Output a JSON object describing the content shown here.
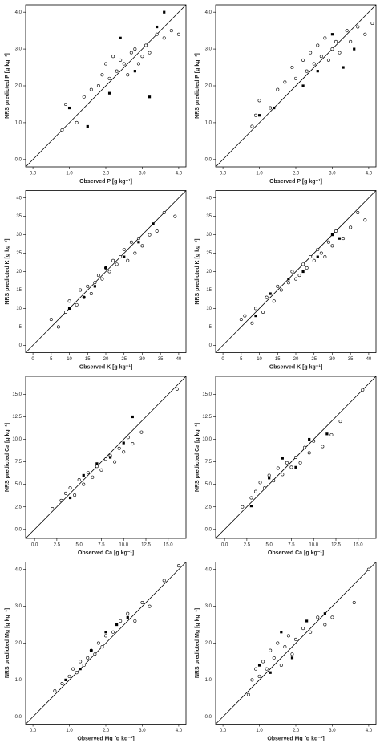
{
  "chart_data": [
    {
      "type": "scatter",
      "xlabel": "Observed P [g kg⁻¹]",
      "ylabel": "NRS predicted P [g kg⁻¹]",
      "xlim": [
        -0.2,
        4.2
      ],
      "ylim": [
        -0.2,
        4.2
      ],
      "xticks": [
        {
          "value": 0,
          "label": "0.0"
        },
        {
          "value": 1,
          "label": "1.0"
        },
        {
          "value": 2,
          "label": "2.0"
        },
        {
          "value": 3,
          "label": "3.0"
        },
        {
          "value": 4,
          "label": "4.0"
        }
      ],
      "yticks": [
        {
          "value": 0,
          "label": "0.0"
        },
        {
          "value": 1,
          "label": "1.0"
        },
        {
          "value": 2,
          "label": "2.0"
        },
        {
          "value": 3,
          "label": "3.0"
        },
        {
          "value": 4,
          "label": "4.0"
        }
      ],
      "identity_line": true,
      "series": [
        {
          "marker": "circle",
          "color": "#000000",
          "x": [
            0.8,
            0.9,
            1.2,
            1.4,
            1.6,
            1.8,
            1.9,
            2.0,
            2.1,
            2.2,
            2.3,
            2.4,
            2.5,
            2.6,
            2.7,
            2.8,
            2.9,
            3.0,
            3.1,
            3.2,
            3.4,
            3.6,
            3.8,
            4.0
          ],
          "y": [
            0.8,
            1.5,
            1.0,
            1.7,
            1.9,
            2.0,
            2.3,
            2.6,
            2.2,
            2.8,
            2.4,
            2.7,
            2.6,
            2.3,
            2.9,
            3.0,
            2.6,
            2.8,
            3.1,
            2.9,
            3.4,
            3.3,
            3.5,
            3.4
          ]
        },
        {
          "marker": "square",
          "color": "#000000",
          "x": [
            1.0,
            1.5,
            2.1,
            2.4,
            2.8,
            3.2,
            3.4,
            3.6
          ],
          "y": [
            1.4,
            0.9,
            1.8,
            3.3,
            2.4,
            1.7,
            3.6,
            4.0
          ]
        }
      ]
    },
    {
      "type": "scatter",
      "xlabel": "Observed P [g kg⁻¹]",
      "ylabel": "NRS predicted P [g kg⁻¹]",
      "xlim": [
        -0.2,
        4.2
      ],
      "ylim": [
        -0.2,
        4.2
      ],
      "xticks": [
        {
          "value": 0,
          "label": "0.0"
        },
        {
          "value": 1,
          "label": "1.0"
        },
        {
          "value": 2,
          "label": "2.0"
        },
        {
          "value": 3,
          "label": "3.0"
        },
        {
          "value": 4,
          "label": "4.0"
        }
      ],
      "yticks": [
        {
          "value": 0,
          "label": "0.0"
        },
        {
          "value": 1,
          "label": "1.0"
        },
        {
          "value": 2,
          "label": "2.0"
        },
        {
          "value": 3,
          "label": "3.0"
        },
        {
          "value": 4,
          "label": "4.0"
        }
      ],
      "identity_line": true,
      "series": [
        {
          "marker": "circle",
          "color": "#000000",
          "x": [
            0.8,
            0.9,
            1.0,
            1.3,
            1.5,
            1.7,
            1.9,
            2.0,
            2.2,
            2.3,
            2.4,
            2.5,
            2.6,
            2.7,
            2.8,
            2.9,
            3.0,
            3.1,
            3.2,
            3.4,
            3.5,
            3.7,
            3.9,
            4.1
          ],
          "y": [
            0.9,
            1.2,
            1.6,
            1.4,
            1.9,
            2.1,
            2.5,
            2.2,
            2.7,
            2.4,
            2.9,
            2.6,
            3.1,
            2.8,
            3.3,
            2.7,
            3.0,
            3.2,
            2.9,
            3.5,
            3.2,
            3.6,
            3.4,
            3.7
          ]
        },
        {
          "marker": "square",
          "color": "#000000",
          "x": [
            1.0,
            1.4,
            2.2,
            2.6,
            3.0,
            3.3,
            3.6
          ],
          "y": [
            1.2,
            1.4,
            2.0,
            2.4,
            3.4,
            2.5,
            3.0
          ]
        }
      ]
    },
    {
      "type": "scatter",
      "xlabel": "Observed K [g kg⁻¹]",
      "ylabel": "NRS predicted K [g kg⁻¹]",
      "xlim": [
        -2,
        42
      ],
      "ylim": [
        -2,
        42
      ],
      "xticks": [
        0,
        5,
        10,
        15,
        20,
        25,
        30,
        35,
        40
      ],
      "yticks": [
        0,
        5,
        10,
        15,
        20,
        25,
        30,
        35,
        40
      ],
      "identity_line": true,
      "series": [
        {
          "marker": "circle",
          "color": "#000000",
          "x": [
            5,
            7,
            9,
            10,
            12,
            13,
            14,
            15,
            16,
            17,
            18,
            19,
            20,
            21,
            22,
            23,
            24,
            25,
            26,
            27,
            28,
            29,
            30,
            32,
            34,
            36,
            39
          ],
          "y": [
            7,
            5,
            9,
            12,
            11,
            15,
            13,
            16,
            14,
            17,
            19,
            18,
            21,
            20,
            23,
            22,
            24,
            26,
            23,
            28,
            25,
            29,
            27,
            30,
            31,
            36,
            35
          ]
        },
        {
          "marker": "square",
          "color": "#000000",
          "x": [
            10,
            14,
            17,
            20,
            25,
            29,
            33
          ],
          "y": [
            10,
            13,
            16,
            21,
            24,
            28,
            33
          ]
        }
      ]
    },
    {
      "type": "scatter",
      "xlabel": "Observed K [g kg⁻¹]",
      "ylabel": "NRS predicted K [g kg⁻¹]",
      "xlim": [
        -2,
        42
      ],
      "ylim": [
        -2,
        42
      ],
      "xticks": [
        0,
        5,
        10,
        15,
        20,
        25,
        30,
        35,
        40
      ],
      "yticks": [
        0,
        5,
        10,
        15,
        20,
        25,
        30,
        35,
        40
      ],
      "identity_line": true,
      "series": [
        {
          "marker": "circle",
          "color": "#000000",
          "x": [
            5,
            6,
            8,
            9,
            11,
            12,
            14,
            15,
            16,
            18,
            19,
            20,
            21,
            22,
            23,
            24,
            25,
            26,
            27,
            28,
            29,
            30,
            31,
            33,
            35,
            37,
            39
          ],
          "y": [
            7,
            8,
            6,
            10,
            9,
            13,
            12,
            16,
            15,
            17,
            20,
            18,
            19,
            22,
            21,
            24,
            23,
            26,
            25,
            24,
            28,
            27,
            31,
            29,
            32,
            36,
            34
          ]
        },
        {
          "marker": "square",
          "color": "#000000",
          "x": [
            9,
            13,
            18,
            22,
            26,
            30,
            32
          ],
          "y": [
            8,
            14,
            18,
            20,
            24,
            30,
            29
          ]
        }
      ]
    },
    {
      "type": "scatter",
      "xlabel": "Observed Ca [g kg⁻¹]",
      "ylabel": "NRS predicted Ca [g kg⁻¹]",
      "xlim": [
        -1,
        17
      ],
      "ylim": [
        -1,
        17
      ],
      "xticks": [
        {
          "value": 0,
          "label": "0.0"
        },
        2.5,
        {
          "value": 5,
          "label": "5.0"
        },
        7.5,
        {
          "value": 10,
          "label": "10.0"
        },
        12.5,
        {
          "value": 15,
          "label": "15.0"
        }
      ],
      "yticks": [
        {
          "value": 0,
          "label": "0.0"
        },
        2.5,
        {
          "value": 5,
          "label": "5.0"
        },
        7.5,
        {
          "value": 10,
          "label": "10.0"
        },
        12.5,
        {
          "value": 15,
          "label": "15.0"
        }
      ],
      "identity_line": true,
      "series": [
        {
          "marker": "circle",
          "color": "#000000",
          "x": [
            2,
            3,
            3.5,
            4,
            4.5,
            5,
            5.5,
            6,
            6.5,
            7,
            7.5,
            8,
            8.5,
            9,
            9.5,
            10,
            10.5,
            11,
            12,
            16
          ],
          "y": [
            2.3,
            3.2,
            4,
            4.6,
            3.8,
            5.5,
            5,
            6.3,
            5.8,
            7,
            6.6,
            7.8,
            8.2,
            7.5,
            9,
            8.6,
            10.2,
            9.5,
            10.8,
            15.6
          ]
        },
        {
          "marker": "square",
          "color": "#000000",
          "x": [
            4,
            5.5,
            7,
            8.5,
            10,
            11
          ],
          "y": [
            3.5,
            6,
            7.3,
            8,
            9.6,
            12.5
          ]
        }
      ]
    },
    {
      "type": "scatter",
      "xlabel": "Observed Ca [g kg⁻¹]",
      "ylabel": "NRS predicted Ca [g kg⁻¹]",
      "xlim": [
        -1,
        17
      ],
      "ylim": [
        -1,
        17
      ],
      "xticks": [
        {
          "value": 0,
          "label": "0.0"
        },
        2.5,
        {
          "value": 5,
          "label": "5.0"
        },
        7.5,
        {
          "value": 10,
          "label": "10.0"
        },
        12.5,
        {
          "value": 15,
          "label": "15.0"
        }
      ],
      "yticks": [
        {
          "value": 0,
          "label": "0.0"
        },
        2.5,
        {
          "value": 5,
          "label": "5.0"
        },
        7.5,
        {
          "value": 10,
          "label": "10.0"
        },
        12.5,
        {
          "value": 15,
          "label": "15.0"
        }
      ],
      "identity_line": true,
      "series": [
        {
          "marker": "circle",
          "color": "#000000",
          "x": [
            2,
            3,
            3.5,
            4,
            4.5,
            5,
            5.5,
            6,
            6.5,
            7,
            7.5,
            8,
            8.5,
            9,
            9.5,
            10,
            11,
            12,
            13,
            15.5
          ],
          "y": [
            2.5,
            3.5,
            4.2,
            5.2,
            4.6,
            6,
            5.4,
            6.8,
            6.1,
            7.4,
            6.9,
            8,
            7.4,
            9.1,
            8.5,
            9.8,
            9.2,
            10.5,
            12,
            15.5
          ]
        },
        {
          "marker": "square",
          "color": "#000000",
          "x": [
            3,
            5,
            6.5,
            8,
            9.5,
            11.5
          ],
          "y": [
            2.6,
            5.7,
            7.9,
            6.9,
            10,
            10.6
          ]
        }
      ]
    },
    {
      "type": "scatter",
      "xlabel": "Observed Mg [g kg⁻¹]",
      "ylabel": "NRS predicted Mg [g kg⁻¹]",
      "xlim": [
        -0.2,
        4.2
      ],
      "ylim": [
        -0.2,
        4.2
      ],
      "xticks": [
        {
          "value": 0,
          "label": "0.0"
        },
        {
          "value": 1,
          "label": "1.0"
        },
        {
          "value": 2,
          "label": "2.0"
        },
        {
          "value": 3,
          "label": "3.0"
        },
        {
          "value": 4,
          "label": "4.0"
        }
      ],
      "yticks": [
        {
          "value": 0,
          "label": "0.0"
        },
        {
          "value": 1,
          "label": "1.0"
        },
        {
          "value": 2,
          "label": "2.0"
        },
        {
          "value": 3,
          "label": "3.0"
        },
        {
          "value": 4,
          "label": "4.0"
        }
      ],
      "identity_line": true,
      "series": [
        {
          "marker": "circle",
          "color": "#000000",
          "x": [
            0.6,
            0.8,
            1.0,
            1.1,
            1.2,
            1.3,
            1.4,
            1.5,
            1.6,
            1.7,
            1.8,
            1.9,
            2.0,
            2.2,
            2.4,
            2.6,
            2.8,
            3.0,
            3.2,
            3.6,
            4.0
          ],
          "y": [
            0.7,
            0.9,
            1.1,
            1.3,
            1.2,
            1.5,
            1.4,
            1.6,
            1.8,
            1.7,
            2.0,
            1.9,
            2.2,
            2.3,
            2.6,
            2.8,
            2.6,
            3.1,
            3.0,
            3.7,
            4.1
          ]
        },
        {
          "marker": "square",
          "color": "#000000",
          "x": [
            0.9,
            1.3,
            1.6,
            2.0,
            2.3,
            2.6
          ],
          "y": [
            1.0,
            1.3,
            1.8,
            2.3,
            2.5,
            2.7
          ]
        }
      ]
    },
    {
      "type": "scatter",
      "xlabel": "Observed Mg [g kg⁻¹]",
      "ylabel": "NRS predicted Mg [g kg⁻¹]",
      "xlim": [
        -0.2,
        4.2
      ],
      "ylim": [
        -0.2,
        4.2
      ],
      "xticks": [
        {
          "value": 0,
          "label": "0.0"
        },
        {
          "value": 1,
          "label": "1.0"
        },
        {
          "value": 2,
          "label": "2.0"
        },
        {
          "value": 3,
          "label": "3.0"
        },
        {
          "value": 4,
          "label": "4.0"
        }
      ],
      "yticks": [
        {
          "value": 0,
          "label": "0.0"
        },
        {
          "value": 1,
          "label": "1.0"
        },
        {
          "value": 2,
          "label": "2.0"
        },
        {
          "value": 3,
          "label": "3.0"
        },
        {
          "value": 4,
          "label": "4.0"
        }
      ],
      "identity_line": true,
      "series": [
        {
          "marker": "circle",
          "color": "#000000",
          "x": [
            0.7,
            0.8,
            0.9,
            1.0,
            1.1,
            1.2,
            1.3,
            1.4,
            1.5,
            1.6,
            1.7,
            1.8,
            1.9,
            2.0,
            2.2,
            2.4,
            2.6,
            2.8,
            3.0,
            3.6,
            4.0
          ],
          "y": [
            0.6,
            1.0,
            1.3,
            1.1,
            1.5,
            1.3,
            1.8,
            1.6,
            2.0,
            1.4,
            1.9,
            2.2,
            1.7,
            2.1,
            2.4,
            2.3,
            2.7,
            2.5,
            2.7,
            3.1,
            4.0
          ]
        },
        {
          "marker": "square",
          "color": "#000000",
          "x": [
            1.0,
            1.3,
            1.6,
            1.9,
            2.3,
            2.8
          ],
          "y": [
            1.4,
            1.2,
            2.3,
            1.6,
            2.6,
            2.8
          ]
        }
      ]
    }
  ]
}
